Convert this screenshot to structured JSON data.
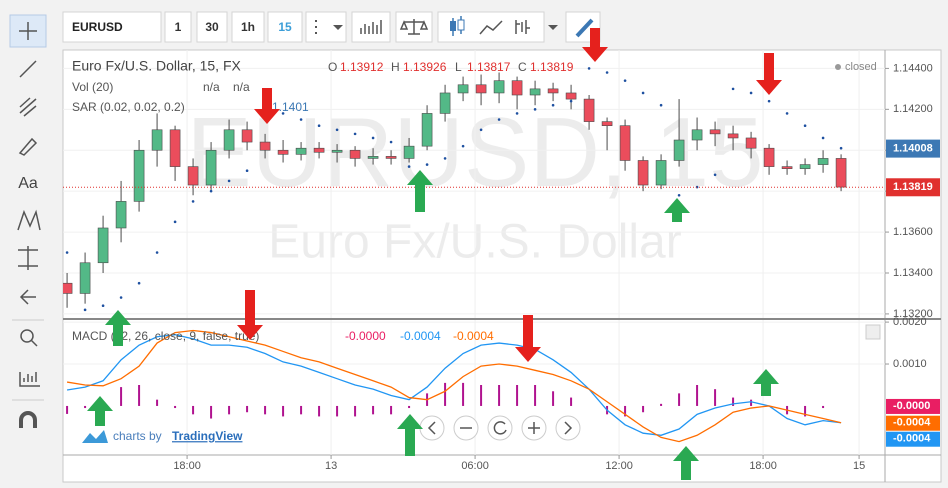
{
  "toolbar": {
    "symbol": "EURUSD",
    "intervals": [
      "1",
      "30",
      "1h",
      "15"
    ]
  },
  "left_toolbar": {
    "text_tool": "Aa"
  },
  "status": "closed",
  "branding": {
    "prefix": "charts by",
    "name": "TradingView"
  },
  "chart_data": [
    {
      "type": "candlestick",
      "title": "Euro Fx/U.S. Dollar, 15, FX",
      "watermark": [
        "EURUSD, 15",
        "Euro Fx/U.S. Dollar"
      ],
      "ohlc_legend": [
        {
          "label": "O",
          "value": "1.13912"
        },
        {
          "label": "H",
          "value": "1.13926"
        },
        {
          "label": "L",
          "value": "1.13817"
        },
        {
          "label": "C",
          "value": "1.13819"
        }
      ],
      "indicators": [
        {
          "name": "Vol (20)",
          "values": [
            "n/a",
            "n/a"
          ]
        },
        {
          "name": "SAR (0.02, 0.02, 0.2)",
          "values": [
            "1.1401"
          ]
        }
      ],
      "up_color": "#53b987",
      "down_color": "#eb4d5c",
      "x": [
        13,
        13.75,
        14.5,
        15.25,
        16,
        16.75,
        17.5,
        18.25,
        19,
        19.75,
        20.5,
        21.25,
        22,
        22.75,
        23.5,
        24.25,
        25,
        25.75,
        26.5,
        27.25,
        28,
        28.75,
        29.5,
        30.25,
        31,
        31.75,
        32.5,
        33.25,
        34,
        34.75,
        35.5,
        36.25,
        37,
        37.75,
        38.5,
        39.25,
        40,
        40.75,
        41.5,
        42.25,
        43,
        43.75,
        44.5,
        45.25
      ],
      "open": [
        1.1335,
        1.133,
        1.1345,
        1.1362,
        1.1375,
        1.14,
        1.141,
        1.1392,
        1.1383,
        1.14,
        1.141,
        1.1404,
        1.14,
        1.1398,
        1.1401,
        1.1399,
        1.14,
        1.1396,
        1.1397,
        1.1396,
        1.1402,
        1.1418,
        1.1428,
        1.1432,
        1.1428,
        1.1434,
        1.1427,
        1.143,
        1.1428,
        1.1425,
        1.1414,
        1.1412,
        1.1395,
        1.1383,
        1.1395,
        1.1405,
        1.141,
        1.1408,
        1.1406,
        1.1401,
        1.1392,
        1.1391,
        1.1393,
        1.1396
      ],
      "high": [
        1.134,
        1.135,
        1.1368,
        1.1385,
        1.1405,
        1.1418,
        1.1412,
        1.1396,
        1.1404,
        1.1415,
        1.1414,
        1.1408,
        1.1405,
        1.1404,
        1.1404,
        1.1403,
        1.1402,
        1.1401,
        1.14,
        1.1406,
        1.1422,
        1.1432,
        1.1436,
        1.1437,
        1.1438,
        1.1436,
        1.1434,
        1.1433,
        1.1432,
        1.1427,
        1.1416,
        1.1415,
        1.1397,
        1.1398,
        1.1425,
        1.1416,
        1.1414,
        1.1412,
        1.1409,
        1.1403,
        1.1395,
        1.1396,
        1.14,
        1.1398
      ],
      "low": [
        1.1323,
        1.1325,
        1.134,
        1.1355,
        1.137,
        1.1392,
        1.1385,
        1.1378,
        1.138,
        1.1396,
        1.14,
        1.1396,
        1.1394,
        1.1395,
        1.1396,
        1.1394,
        1.1392,
        1.1393,
        1.1393,
        1.1394,
        1.14,
        1.1414,
        1.1424,
        1.1422,
        1.1423,
        1.142,
        1.1422,
        1.1424,
        1.142,
        1.141,
        1.14,
        1.139,
        1.138,
        1.1381,
        1.1392,
        1.14,
        1.1402,
        1.14,
        1.1396,
        1.1388,
        1.1388,
        1.1388,
        1.1389,
        1.138
      ],
      "close": [
        1.133,
        1.1345,
        1.1362,
        1.1375,
        1.14,
        1.141,
        1.1392,
        1.1383,
        1.14,
        1.141,
        1.1404,
        1.14,
        1.1398,
        1.1401,
        1.1399,
        1.14,
        1.1396,
        1.1397,
        1.1396,
        1.1402,
        1.1418,
        1.1428,
        1.1432,
        1.1428,
        1.1434,
        1.1427,
        1.143,
        1.1428,
        1.1425,
        1.1414,
        1.1412,
        1.1395,
        1.1383,
        1.1395,
        1.1405,
        1.141,
        1.1408,
        1.1406,
        1.1401,
        1.1392,
        1.1391,
        1.1393,
        1.1396,
        1.1382
      ],
      "sar": {
        "color": "#1e50a0",
        "values": [
          1.135,
          1.1322,
          1.1324,
          1.1328,
          1.1335,
          1.135,
          1.1365,
          1.1375,
          1.138,
          1.1385,
          1.139,
          1.142,
          1.1418,
          1.1415,
          1.1412,
          1.141,
          1.1408,
          1.1406,
          1.1404,
          1.1392,
          1.1393,
          1.1396,
          1.1402,
          1.141,
          1.1415,
          1.1418,
          1.142,
          1.1422,
          1.1424,
          1.144,
          1.1438,
          1.1434,
          1.1428,
          1.1422,
          1.1378,
          1.1382,
          1.1388,
          1.143,
          1.1428,
          1.1424,
          1.1418,
          1.1412,
          1.1406,
          1.1401
        ]
      },
      "xlim": [
        12.83,
        47.08
      ],
      "ylim": [
        1.1318,
        1.1449
      ],
      "xticks": [
        {
          "value": 18,
          "label": "18:00"
        },
        {
          "value": 24,
          "label": "13"
        },
        {
          "value": 30,
          "label": "06:00"
        },
        {
          "value": 36,
          "label": "12:00"
        },
        {
          "value": 42,
          "label": "18:00"
        },
        {
          "value": 46,
          "label": "15"
        }
      ],
      "yticks": [
        {
          "value": 1.144,
          "label": "1.14400"
        },
        {
          "value": 1.142,
          "label": "1.14200"
        },
        {
          "value": 1.14,
          "label": "1.14000"
        },
        {
          "value": 1.138,
          "label": "1.13800"
        },
        {
          "value": 1.136,
          "label": "1.13600"
        },
        {
          "value": 1.134,
          "label": "1.13400"
        },
        {
          "value": 1.132,
          "label": "1.13200"
        }
      ],
      "price_labels": [
        {
          "value": 1.14008,
          "label": "1.14008",
          "color": "#3c78b4"
        },
        {
          "value": 1.13819,
          "label": "1.13819",
          "color": "#e0302e"
        }
      ],
      "grid": true
    },
    {
      "type": "macd",
      "title": "MACD (12, 26, close, 9, false, true)",
      "legend_values": [
        {
          "label": "-0.0000",
          "color": "#e91e63"
        },
        {
          "label": "-0.0004",
          "color": "#2196f3"
        },
        {
          "label": "-0.0004",
          "color": "#ff6d00"
        }
      ],
      "x": [
        13,
        13.75,
        14.5,
        15.25,
        16,
        16.75,
        17.5,
        18.25,
        19,
        19.75,
        20.5,
        21.25,
        22,
        22.75,
        23.5,
        24.25,
        25,
        25.75,
        26.5,
        27.25,
        28,
        28.75,
        29.5,
        30.25,
        31,
        31.75,
        32.5,
        33.25,
        34,
        34.75,
        35.5,
        36.25,
        37,
        37.75,
        38.5,
        39.25,
        40,
        40.75,
        41.5,
        42.25,
        43,
        43.75,
        44.5,
        45.25
      ],
      "series": [
        {
          "color": "#b0128f",
          "values": [
            -0.00019,
            -5e-05,
            0.00012,
            0.00045,
            0.0005,
            0.00015,
            -5e-05,
            -0.0002,
            -0.0003,
            -0.0002,
            -0.00015,
            -0.0002,
            -0.00025,
            -0.0002,
            -0.00025,
            -0.00025,
            -0.00025,
            -0.0002,
            -0.0002,
            -5e-05,
            0.0003,
            0.00055,
            0.00055,
            0.0005,
            0.0005,
            0.0005,
            0.0005,
            0.00035,
            0.0002,
            0,
            -0.0002,
            -0.00025,
            -0.00015,
            5e-05,
            0.0003,
            0.0005,
            0.0004,
            0.0002,
            0.00015,
            0,
            -0.0002,
            -0.00025,
            -5e-05,
            0
          ]
        },
        {
          "color": "#2196f3",
          "values": [
            0.00038,
            0.00045,
            0.0006,
            0.0011,
            0.00145,
            0.00165,
            0.0017,
            0.0016,
            0.00145,
            0.00145,
            0.0014,
            0.00125,
            0.00105,
            0.00095,
            0.0008,
            0.00065,
            0.0005,
            0.0004,
            0.00025,
            0.00015,
            0.00045,
            0.0009,
            0.00125,
            0.00145,
            0.0015,
            0.00145,
            0.00135,
            0.0011,
            0.0008,
            0.0004,
            -0.0001,
            -0.00045,
            -0.00065,
            -0.0007,
            -0.00055,
            -0.0002,
            -5e-05,
            5e-05,
            0.0001,
            0,
            -0.0003,
            -0.00045,
            -0.00035,
            -0.0004
          ]
        },
        {
          "color": "#ff6d00",
          "values": [
            0.00057,
            0.0005,
            0.00048,
            0.00065,
            0.00095,
            0.0015,
            0.00175,
            0.0018,
            0.00175,
            0.00165,
            0.00155,
            0.00145,
            0.0013,
            0.00115,
            0.00105,
            0.0009,
            0.00075,
            0.0006,
            0.00045,
            0.0002,
            0.00015,
            0.00035,
            0.0007,
            0.00095,
            0.001,
            0.00095,
            0.00085,
            0.00075,
            0.0006,
            0.0004,
            0.0001,
            -0.0002,
            -0.0005,
            -0.00075,
            -0.00085,
            -0.0007,
            -0.00045,
            -0.00015,
            -5e-05,
            0,
            -0.0001,
            -0.0002,
            -0.0003,
            -0.0004
          ]
        }
      ],
      "xlim": [
        12.83,
        47.08
      ],
      "ylim": [
        -0.00117,
        0.00205
      ],
      "yticks": [
        {
          "value": 0.002,
          "label": "0.0020"
        },
        {
          "value": 0.001,
          "label": "0.0010"
        }
      ],
      "price_labels": [
        {
          "value": 0,
          "label": "-0.0000",
          "color": "#e91e63"
        },
        {
          "value": -0.0004,
          "label": "-0.0004",
          "color": "#ff6d00"
        },
        {
          "value": -0.0004,
          "label": "-0.0004",
          "color": "#2196f3"
        }
      ],
      "grid": true
    }
  ]
}
